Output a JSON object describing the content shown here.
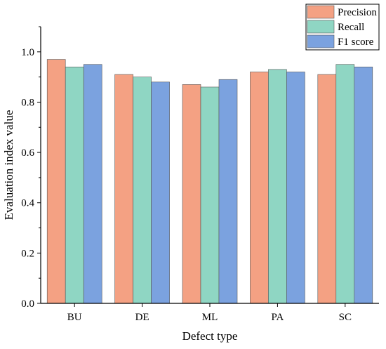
{
  "chart_data": {
    "type": "bar",
    "title": "",
    "xlabel": "Defect type",
    "ylabel": "Evaluation index value",
    "categories": [
      "BU",
      "DE",
      "ML",
      "PA",
      "SC"
    ],
    "series": [
      {
        "name": "Precision",
        "color": "#f4a183",
        "values": [
          0.97,
          0.91,
          0.87,
          0.92,
          0.91
        ]
      },
      {
        "name": "Recall",
        "color": "#8fd6c3",
        "values": [
          0.94,
          0.9,
          0.86,
          0.93,
          0.95
        ]
      },
      {
        "name": "F1 score",
        "color": "#7ba2df",
        "values": [
          0.95,
          0.88,
          0.89,
          0.92,
          0.94
        ]
      }
    ],
    "ylim": [
      0,
      1.1
    ],
    "yticks": [
      "0.0",
      "0.2",
      "0.4",
      "0.6",
      "0.8",
      "1.0"
    ],
    "ytick_values": [
      0,
      0.2,
      0.4,
      0.6,
      0.8,
      1.0
    ],
    "grid": false,
    "legend_position": "top-right"
  }
}
